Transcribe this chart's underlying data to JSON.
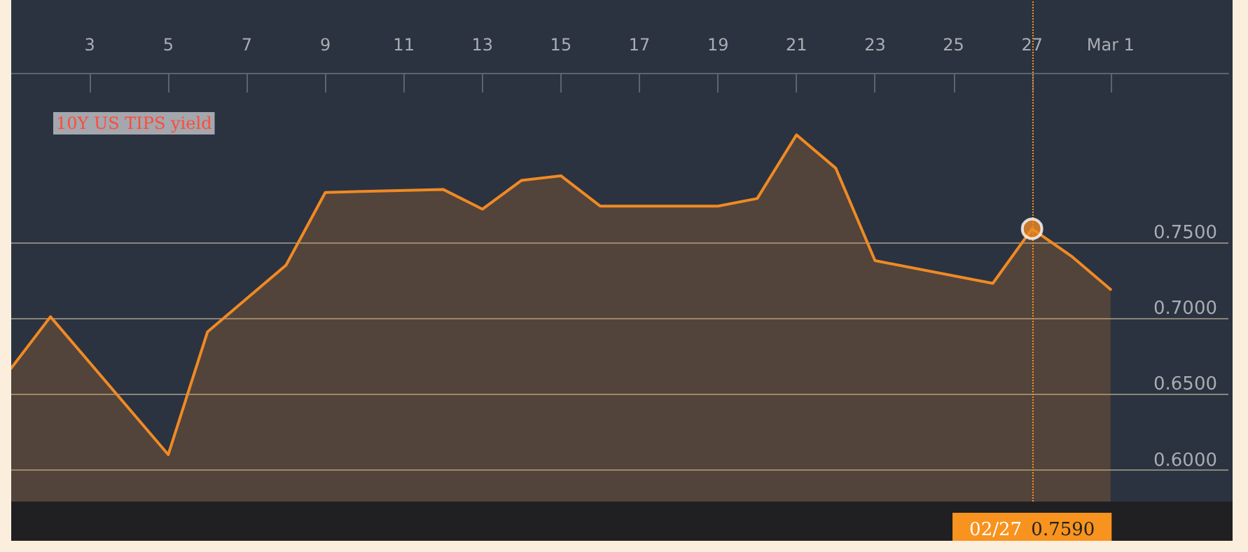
{
  "chart_data": {
    "type": "area",
    "x": [
      "--02-01",
      "--02-02",
      "--02-05",
      "--02-06",
      "--02-08",
      "--02-09",
      "--02-12",
      "--02-13",
      "--02-14",
      "--02-15",
      "--02-16",
      "--02-19",
      "--02-20",
      "--02-21",
      "--02-22",
      "--02-23",
      "--02-26",
      "--02-27",
      "--02-28",
      "--03-01"
    ],
    "title": "10Y US TIPS yield",
    "series": [
      {
        "color": "#f08a24",
        "values": [
          0.667,
          0.701,
          0.61,
          0.691,
          0.735,
          0.783,
          0.785,
          0.772,
          0.791,
          0.794,
          0.774,
          0.774,
          0.779,
          0.821,
          0.799,
          0.738,
          0.723,
          0.759,
          0.741,
          0.719
        ]
      }
    ],
    "xlim": [
      "--02-01",
      "--03-04"
    ],
    "xticks": [
      {
        "value": "--02-03",
        "label": "3"
      },
      {
        "value": "--02-05",
        "label": "5"
      },
      {
        "value": "--02-07",
        "label": "7"
      },
      {
        "value": "--02-09",
        "label": "9"
      },
      {
        "value": "--02-11",
        "label": "11"
      },
      {
        "value": "--02-13",
        "label": "13"
      },
      {
        "value": "--02-15",
        "label": "15"
      },
      {
        "value": "--02-17",
        "label": "17"
      },
      {
        "value": "--02-19",
        "label": "19"
      },
      {
        "value": "--02-21",
        "label": "21"
      },
      {
        "value": "--02-23",
        "label": "23"
      },
      {
        "value": "--02-25",
        "label": "25"
      },
      {
        "value": "--02-27",
        "label": "27"
      },
      {
        "value": "--03-01",
        "label": "Mar 1"
      }
    ],
    "ylim": [
      0.579,
      0.91
    ],
    "yticks": [
      {
        "value": 0.6,
        "label": "0.6000"
      },
      {
        "value": 0.65,
        "label": "0.6500"
      },
      {
        "value": 0.7,
        "label": "0.7000"
      },
      {
        "value": 0.75,
        "label": "0.7500"
      }
    ],
    "grid": "y",
    "marker": "none",
    "ref_lines": [
      {
        "axis": "x",
        "value": "--02-27",
        "label": "02/27",
        "color": "#f7931e",
        "line_style": "dotted"
      }
    ],
    "annotations": [
      "0.7590"
    ]
  }
}
